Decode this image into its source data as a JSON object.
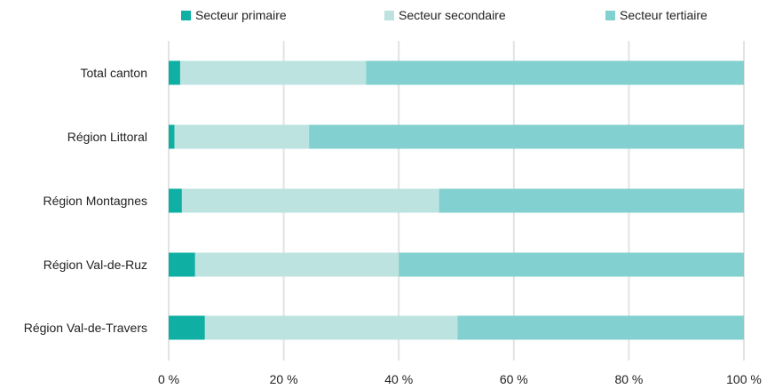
{
  "chart_data": {
    "type": "bar",
    "orientation": "horizontal",
    "stacked": "percent",
    "categories": [
      "Total canton",
      "Région Littoral",
      "Région Montagnes",
      "Région Val-de-Ruz",
      "Région Val-de-Travers"
    ],
    "series": [
      {
        "name": "Secteur primaire",
        "color": "#0fb0a3",
        "values": [
          2.0,
          1.0,
          2.3,
          4.6,
          6.3
        ]
      },
      {
        "name": "Secteur secondaire",
        "color": "#bde3e1",
        "values": [
          32.3,
          23.4,
          44.7,
          35.4,
          43.9
        ]
      },
      {
        "name": "Secteur tertiaire",
        "color": "#82d0cf",
        "values": [
          65.7,
          75.6,
          53.0,
          60.0,
          49.8
        ]
      }
    ],
    "xlim": [
      0,
      100
    ],
    "xticks": [
      "0 %",
      "20 %",
      "40 %",
      "60 %",
      "80 %",
      "100 %"
    ],
    "grid": true,
    "legend_position": "top"
  }
}
